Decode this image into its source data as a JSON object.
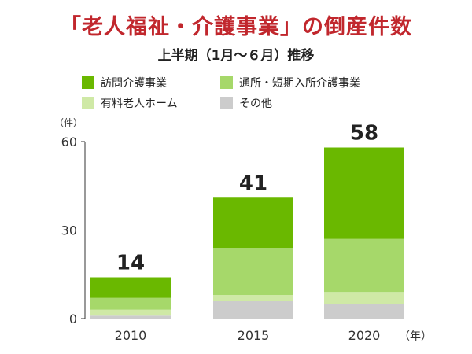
{
  "title": "「老人福祉・介護事業」の倒産件数",
  "subtitle": "上半期（1月～６月）推移",
  "colors": {
    "title": "#c1272d",
    "houmon": "#6ab800",
    "tsusho": "#a6d86a",
    "yuryo": "#cfe9a6",
    "other": "#cccccc",
    "axis": "#333333"
  },
  "chart_data": {
    "type": "bar",
    "stacked": true,
    "categories": [
      "2010",
      "2015",
      "2020"
    ],
    "xlabel": "（年）",
    "ylabel": "（件）",
    "ylim": [
      0,
      60
    ],
    "yticks": [
      "0",
      "30",
      "60"
    ],
    "totals": [
      "14",
      "41",
      "58"
    ],
    "legend_placement": "top",
    "series": [
      {
        "name": "その他",
        "values": [
          1,
          6,
          5
        ],
        "color": "#cccccc"
      },
      {
        "name": "有料老人ホーム",
        "values": [
          2,
          2,
          4
        ],
        "color": "#cfe9a6"
      },
      {
        "name": "通所・短期入所介護事業",
        "values": [
          4,
          16,
          18
        ],
        "color": "#a6d86a"
      },
      {
        "name": "訪問介護事業",
        "values": [
          7,
          17,
          31
        ],
        "color": "#6ab800"
      }
    ]
  },
  "legend": [
    {
      "label": "訪問介護事業",
      "color": "#6ab800"
    },
    {
      "label": "通所・短期入所介護事業",
      "color": "#a6d86a"
    },
    {
      "label": "有料老人ホーム",
      "color": "#cfe9a6"
    },
    {
      "label": "その他",
      "color": "#cccccc"
    }
  ]
}
